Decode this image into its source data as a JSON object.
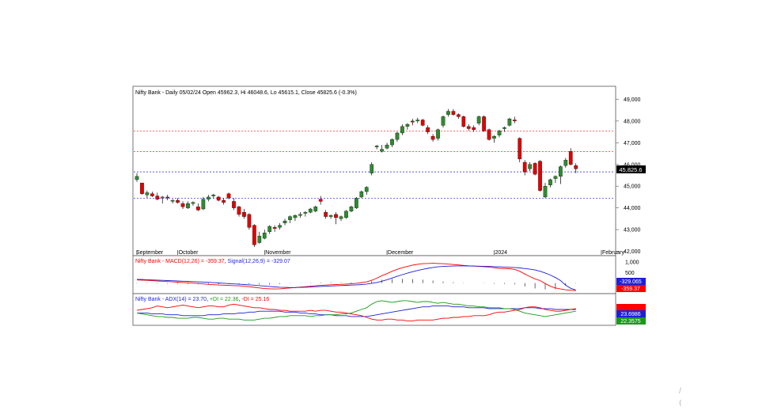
{
  "colors": {
    "up": "#2e8b2e",
    "down": "#e00000",
    "wick": "#000000",
    "macd": "#ff0000",
    "signal": "#1f1fd8",
    "hist": "#000000",
    "adx": "#1f1fd8",
    "plus_di": "#1a9a1a",
    "minus_di": "#ff0000",
    "hline_red": "#ff0000",
    "hline_blue": "#1f1fd8"
  },
  "chart_data": [
    {
      "type": "candlestick",
      "title": "Nifty Bank - Daily 05/02/24 Open 45962.3, Hi 46048.6, Lo 45615.1, Close 45825.6 (-0.3%)",
      "y_ticks": [
        "49,000",
        "48,000",
        "47,000",
        "46,000",
        "45,000",
        "44,000",
        "43,000",
        "42,000"
      ],
      "y_tick_values": [
        49000,
        48000,
        47000,
        46000,
        45000,
        44000,
        43000,
        42000
      ],
      "ylim": [
        41800,
        49600
      ],
      "x_labels": [
        "September",
        "October",
        "November",
        "December",
        "2024",
        "February"
      ],
      "x_label_indices": [
        0,
        8,
        25,
        49,
        70,
        91
      ],
      "last_price_label": "45,825.6",
      "horizontal_lines": [
        {
          "value": 47530,
          "style": "red"
        },
        {
          "value": 46600,
          "style": "red"
        },
        {
          "value": 45660,
          "style": "blue"
        },
        {
          "value": 44450,
          "style": "blue"
        }
      ],
      "candles": [
        [
          45300,
          45600,
          45200,
          45450
        ],
        [
          45150,
          45150,
          44600,
          44650
        ],
        [
          44600,
          44800,
          44450,
          44700
        ],
        [
          44650,
          44750,
          44500,
          44550
        ],
        [
          44550,
          44700,
          44350,
          44400
        ],
        [
          44450,
          44550,
          44200,
          44500
        ],
        [
          44500,
          44600,
          44350,
          44450
        ],
        [
          44300,
          44400,
          44200,
          44350
        ],
        [
          44350,
          44450,
          44200,
          44250
        ],
        [
          44200,
          44300,
          43950,
          44050
        ],
        [
          44000,
          44300,
          43950,
          44200
        ],
        [
          44200,
          44300,
          44100,
          44250
        ],
        [
          44050,
          44200,
          43850,
          43900
        ],
        [
          43950,
          44500,
          43900,
          44400
        ],
        [
          44400,
          44600,
          44300,
          44500
        ],
        [
          44550,
          44650,
          44450,
          44600
        ],
        [
          44500,
          44550,
          44300,
          44350
        ],
        [
          44350,
          44450,
          44150,
          44250
        ],
        [
          44650,
          44700,
          44400,
          44450
        ],
        [
          44300,
          44450,
          43900,
          44000
        ],
        [
          44050,
          44100,
          43600,
          43700
        ],
        [
          43800,
          43950,
          43500,
          43600
        ],
        [
          43700,
          43750,
          43000,
          43100
        ],
        [
          43200,
          43250,
          42200,
          42300
        ],
        [
          42400,
          42900,
          42350,
          42700
        ],
        [
          42600,
          43000,
          42550,
          42850
        ],
        [
          42900,
          43200,
          42800,
          43150
        ],
        [
          43100,
          43200,
          42900,
          43050
        ],
        [
          43100,
          43300,
          43000,
          43200
        ],
        [
          43300,
          43500,
          43200,
          43400
        ],
        [
          43450,
          43650,
          43300,
          43600
        ],
        [
          43550,
          43700,
          43400,
          43650
        ],
        [
          43650,
          43800,
          43550,
          43700
        ],
        [
          43750,
          43850,
          43600,
          43800
        ],
        [
          43800,
          44000,
          43750,
          43950
        ],
        [
          43850,
          44100,
          43800,
          44050
        ],
        [
          44400,
          44550,
          44150,
          44300
        ],
        [
          43800,
          43900,
          43500,
          43600
        ],
        [
          43600,
          43700,
          43500,
          43650
        ],
        [
          43700,
          43800,
          43250,
          43550
        ],
        [
          43500,
          43650,
          43400,
          43600
        ],
        [
          43550,
          43900,
          43500,
          43850
        ],
        [
          43850,
          44100,
          43800,
          44050
        ],
        [
          44000,
          44500,
          43950,
          44450
        ],
        [
          44500,
          44800,
          44450,
          44750
        ],
        [
          44750,
          45000,
          44600,
          44950
        ],
        [
          45600,
          46100,
          45500,
          46000
        ],
        [
          46800,
          46900,
          46700,
          46850
        ],
        [
          46600,
          46900,
          46550,
          46700
        ],
        [
          46750,
          47000,
          46700,
          46900
        ],
        [
          46900,
          47200,
          46800,
          47150
        ],
        [
          47150,
          47500,
          47050,
          47450
        ],
        [
          47450,
          47850,
          47350,
          47750
        ],
        [
          47750,
          47900,
          47600,
          47850
        ],
        [
          48000,
          48100,
          47800,
          47950
        ],
        [
          48000,
          48150,
          47900,
          48050
        ],
        [
          48050,
          48100,
          47750,
          47800
        ],
        [
          47700,
          47800,
          47400,
          47500
        ],
        [
          47300,
          47400,
          47050,
          47150
        ],
        [
          47200,
          47650,
          47100,
          47600
        ],
        [
          47800,
          48250,
          47700,
          48200
        ],
        [
          48300,
          48550,
          48200,
          48450
        ],
        [
          48450,
          48550,
          48250,
          48300
        ],
        [
          48300,
          48350,
          48100,
          48200
        ],
        [
          48200,
          48250,
          47700,
          47750
        ],
        [
          47750,
          47850,
          47550,
          47650
        ],
        [
          47700,
          47800,
          47500,
          47600
        ],
        [
          47900,
          48250,
          47800,
          48200
        ],
        [
          48200,
          48250,
          47500,
          47550
        ],
        [
          47600,
          47650,
          47100,
          47150
        ],
        [
          47200,
          47350,
          47000,
          47300
        ],
        [
          47350,
          47600,
          47250,
          47550
        ],
        [
          47650,
          47750,
          47500,
          47700
        ],
        [
          47800,
          48150,
          47750,
          48100
        ],
        [
          48050,
          48200,
          47900,
          48000
        ],
        [
          47200,
          47250,
          46100,
          46250
        ],
        [
          46100,
          46200,
          45500,
          45650
        ],
        [
          45800,
          46100,
          45700,
          46000
        ],
        [
          46050,
          46100,
          45500,
          45550
        ],
        [
          46150,
          46200,
          44750,
          44800
        ],
        [
          44500,
          45150,
          44450,
          45000
        ],
        [
          45050,
          45350,
          44950,
          45300
        ],
        [
          45350,
          45500,
          45150,
          45450
        ],
        [
          45450,
          45950,
          45100,
          45900
        ],
        [
          45950,
          46300,
          45850,
          46200
        ],
        [
          46600,
          46750,
          45950,
          46000
        ],
        [
          45950,
          46050,
          45600,
          45800
        ]
      ]
    },
    {
      "type": "line",
      "title": "Nifty Bank - MACD(12,26) = -359.37, Signal(12,26,9) = -329.07",
      "macd_label": "Nifty Bank - MACD(12,26) = -359.37",
      "signal_label": "Signal(12,26,9) = -329.07",
      "y_ticks": [
        "1,000",
        "500",
        "0"
      ],
      "y_tick_values": [
        1000,
        500,
        0
      ],
      "ylim": [
        -500,
        1300
      ],
      "signal_value_label": "-329.065",
      "macd_value_label": "-359.37",
      "series": [
        {
          "name": "MACD(12,26)",
          "values": [
            150,
            140,
            130,
            120,
            100,
            90,
            75,
            60,
            45,
            30,
            15,
            0,
            -20,
            -40,
            -60,
            -75,
            -90,
            -100,
            -110,
            -120,
            -130,
            -150,
            -170,
            -200,
            -230,
            -260,
            -270,
            -280,
            -270,
            -250,
            -230,
            -210,
            -190,
            -170,
            -150,
            -130,
            -110,
            -95,
            -80,
            -70,
            -60,
            -45,
            -30,
            -10,
            20,
            60,
            130,
            230,
            350,
            450,
            560,
            650,
            730,
            790,
            850,
            890,
            920,
            930,
            940,
            930,
            920,
            900,
            880,
            860,
            840,
            820,
            810,
            790,
            780,
            760,
            730,
            700,
            690,
            680,
            650,
            560,
            430,
            310,
            200,
            120,
            -20,
            -150,
            -230,
            -280,
            -320,
            -340,
            -359
          ]
        },
        {
          "name": "Signal(12,26,9)",
          "values": [
            180,
            170,
            160,
            150,
            140,
            130,
            120,
            110,
            100,
            90,
            80,
            70,
            60,
            50,
            35,
            20,
            5,
            -10,
            -25,
            -40,
            -55,
            -70,
            -85,
            -100,
            -120,
            -140,
            -160,
            -180,
            -195,
            -205,
            -210,
            -210,
            -205,
            -195,
            -180,
            -170,
            -158,
            -148,
            -138,
            -128,
            -118,
            -108,
            -96,
            -84,
            -70,
            -45,
            -10,
            30,
            90,
            160,
            240,
            320,
            400,
            470,
            540,
            600,
            650,
            700,
            740,
            770,
            790,
            800,
            810,
            815,
            815,
            810,
            805,
            800,
            795,
            790,
            780,
            770,
            760,
            750,
            740,
            720,
            690,
            660,
            620,
            560,
            480,
            380,
            260,
            120,
            -100,
            -250,
            -329
          ]
        }
      ]
    },
    {
      "type": "line",
      "title": "Nifty Bank - ADX(14) = 23.70, +DI = 22.36, -DI = 25.16",
      "adx_label": "Nifty Bank - ADX(14) = 23.70",
      "plus_di_label": "+DI = 22.36",
      "minus_di_label": "-DI = 25.16",
      "ylim": [
        6,
        42
      ],
      "adx_value_label": "23.6986",
      "plus_di_value_label": "22.3575",
      "series": [
        {
          "name": "ADX(14)",
          "values": [
            20,
            20,
            20,
            19,
            19,
            19,
            18,
            18,
            18,
            17,
            17,
            17,
            17,
            17,
            18,
            18,
            18,
            19,
            19,
            19,
            20,
            20,
            21,
            21,
            22,
            22,
            22,
            22,
            22,
            21,
            21,
            21,
            20,
            20,
            19,
            19,
            18,
            18,
            18,
            17,
            17,
            17,
            16,
            16,
            16,
            16,
            17,
            18,
            19,
            20,
            21,
            22,
            23,
            24,
            25,
            26,
            27,
            27,
            28,
            28,
            28,
            28,
            27,
            27,
            27,
            26,
            26,
            26,
            26,
            25,
            25,
            25,
            25,
            25,
            25,
            25,
            26,
            26,
            26,
            25,
            25,
            25,
            24,
            24,
            24,
            24,
            24
          ]
        },
        {
          "name": "+DI",
          "values": [
            20,
            19,
            18,
            17,
            16,
            16,
            15,
            15,
            14,
            14,
            14,
            15,
            15,
            14,
            13,
            13,
            14,
            14,
            13,
            13,
            13,
            12,
            12,
            12,
            13,
            14,
            14,
            15,
            16,
            16,
            17,
            17,
            17,
            17,
            16,
            17,
            17,
            18,
            18,
            18,
            19,
            19,
            20,
            22,
            24,
            26,
            30,
            33,
            34,
            33,
            32,
            33,
            34,
            34,
            33,
            32,
            33,
            33,
            32,
            31,
            32,
            31,
            30,
            30,
            29,
            28,
            28,
            27,
            27,
            26,
            26,
            26,
            25,
            25,
            24,
            22,
            20,
            19,
            18,
            17,
            16,
            17,
            18,
            19,
            20,
            21,
            22
          ]
        },
        {
          "name": "-DI",
          "values": [
            23,
            24,
            25,
            26,
            28,
            27,
            26,
            27,
            28,
            29,
            28,
            27,
            26,
            27,
            28,
            28,
            27,
            27,
            29,
            30,
            29,
            28,
            27,
            26,
            26,
            25,
            24,
            24,
            23,
            23,
            22,
            22,
            22,
            22,
            23,
            22,
            23,
            23,
            22,
            21,
            21,
            20,
            19,
            18,
            17,
            15,
            13,
            12,
            12,
            13,
            13,
            12,
            12,
            11,
            11,
            12,
            12,
            12,
            12,
            13,
            14,
            14,
            15,
            15,
            16,
            16,
            17,
            17,
            17,
            18,
            20,
            21,
            21,
            22,
            23,
            24,
            26,
            27,
            27,
            26,
            24,
            23,
            22,
            22,
            23,
            24,
            25
          ]
        }
      ]
    }
  ]
}
